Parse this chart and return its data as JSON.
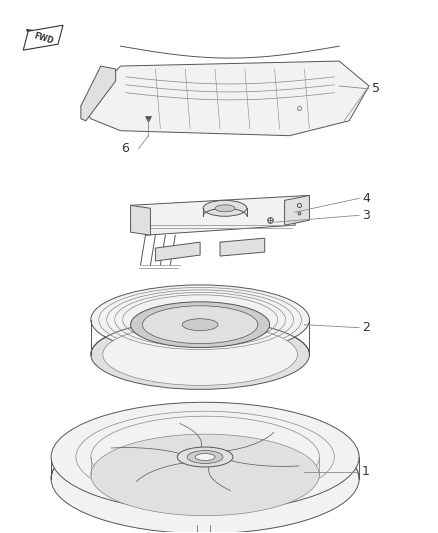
{
  "background_color": "#ffffff",
  "fig_width": 4.38,
  "fig_height": 5.33,
  "dpi": 100,
  "line_color": "#555555",
  "line_color_light": "#888888",
  "fill_light": "#f2f2f2",
  "fill_mid": "#e0e0e0",
  "fill_dark": "#cccccc",
  "part_label_color": "#333333",
  "part_label_fontsize": 9,
  "leader_color": "#888888",
  "fwd_label": "FWD"
}
